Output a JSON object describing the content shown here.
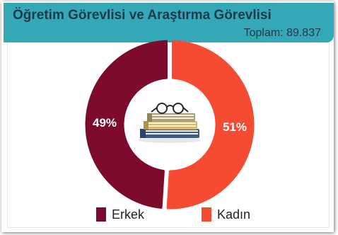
{
  "header": {
    "title": "Öğretim Görevlisi ve Araştırma Görevlisi",
    "total": "Toplam: 89.837"
  },
  "icon": "books-with-glasses-icon",
  "colors": {
    "accent": "#35a8b8",
    "erkek": "#7d0c2c",
    "kadin": "#f64b33"
  },
  "chart_data": {
    "type": "donut",
    "title": "Öğretim Görevlisi ve Araştırma Görevlisi",
    "series": [
      {
        "name": "Erkek",
        "value": 49,
        "label": "49%",
        "color": "#7d0c2c"
      },
      {
        "name": "Kadın",
        "value": 51,
        "label": "51%",
        "color": "#f64b33"
      }
    ],
    "legend_position": "bottom"
  }
}
